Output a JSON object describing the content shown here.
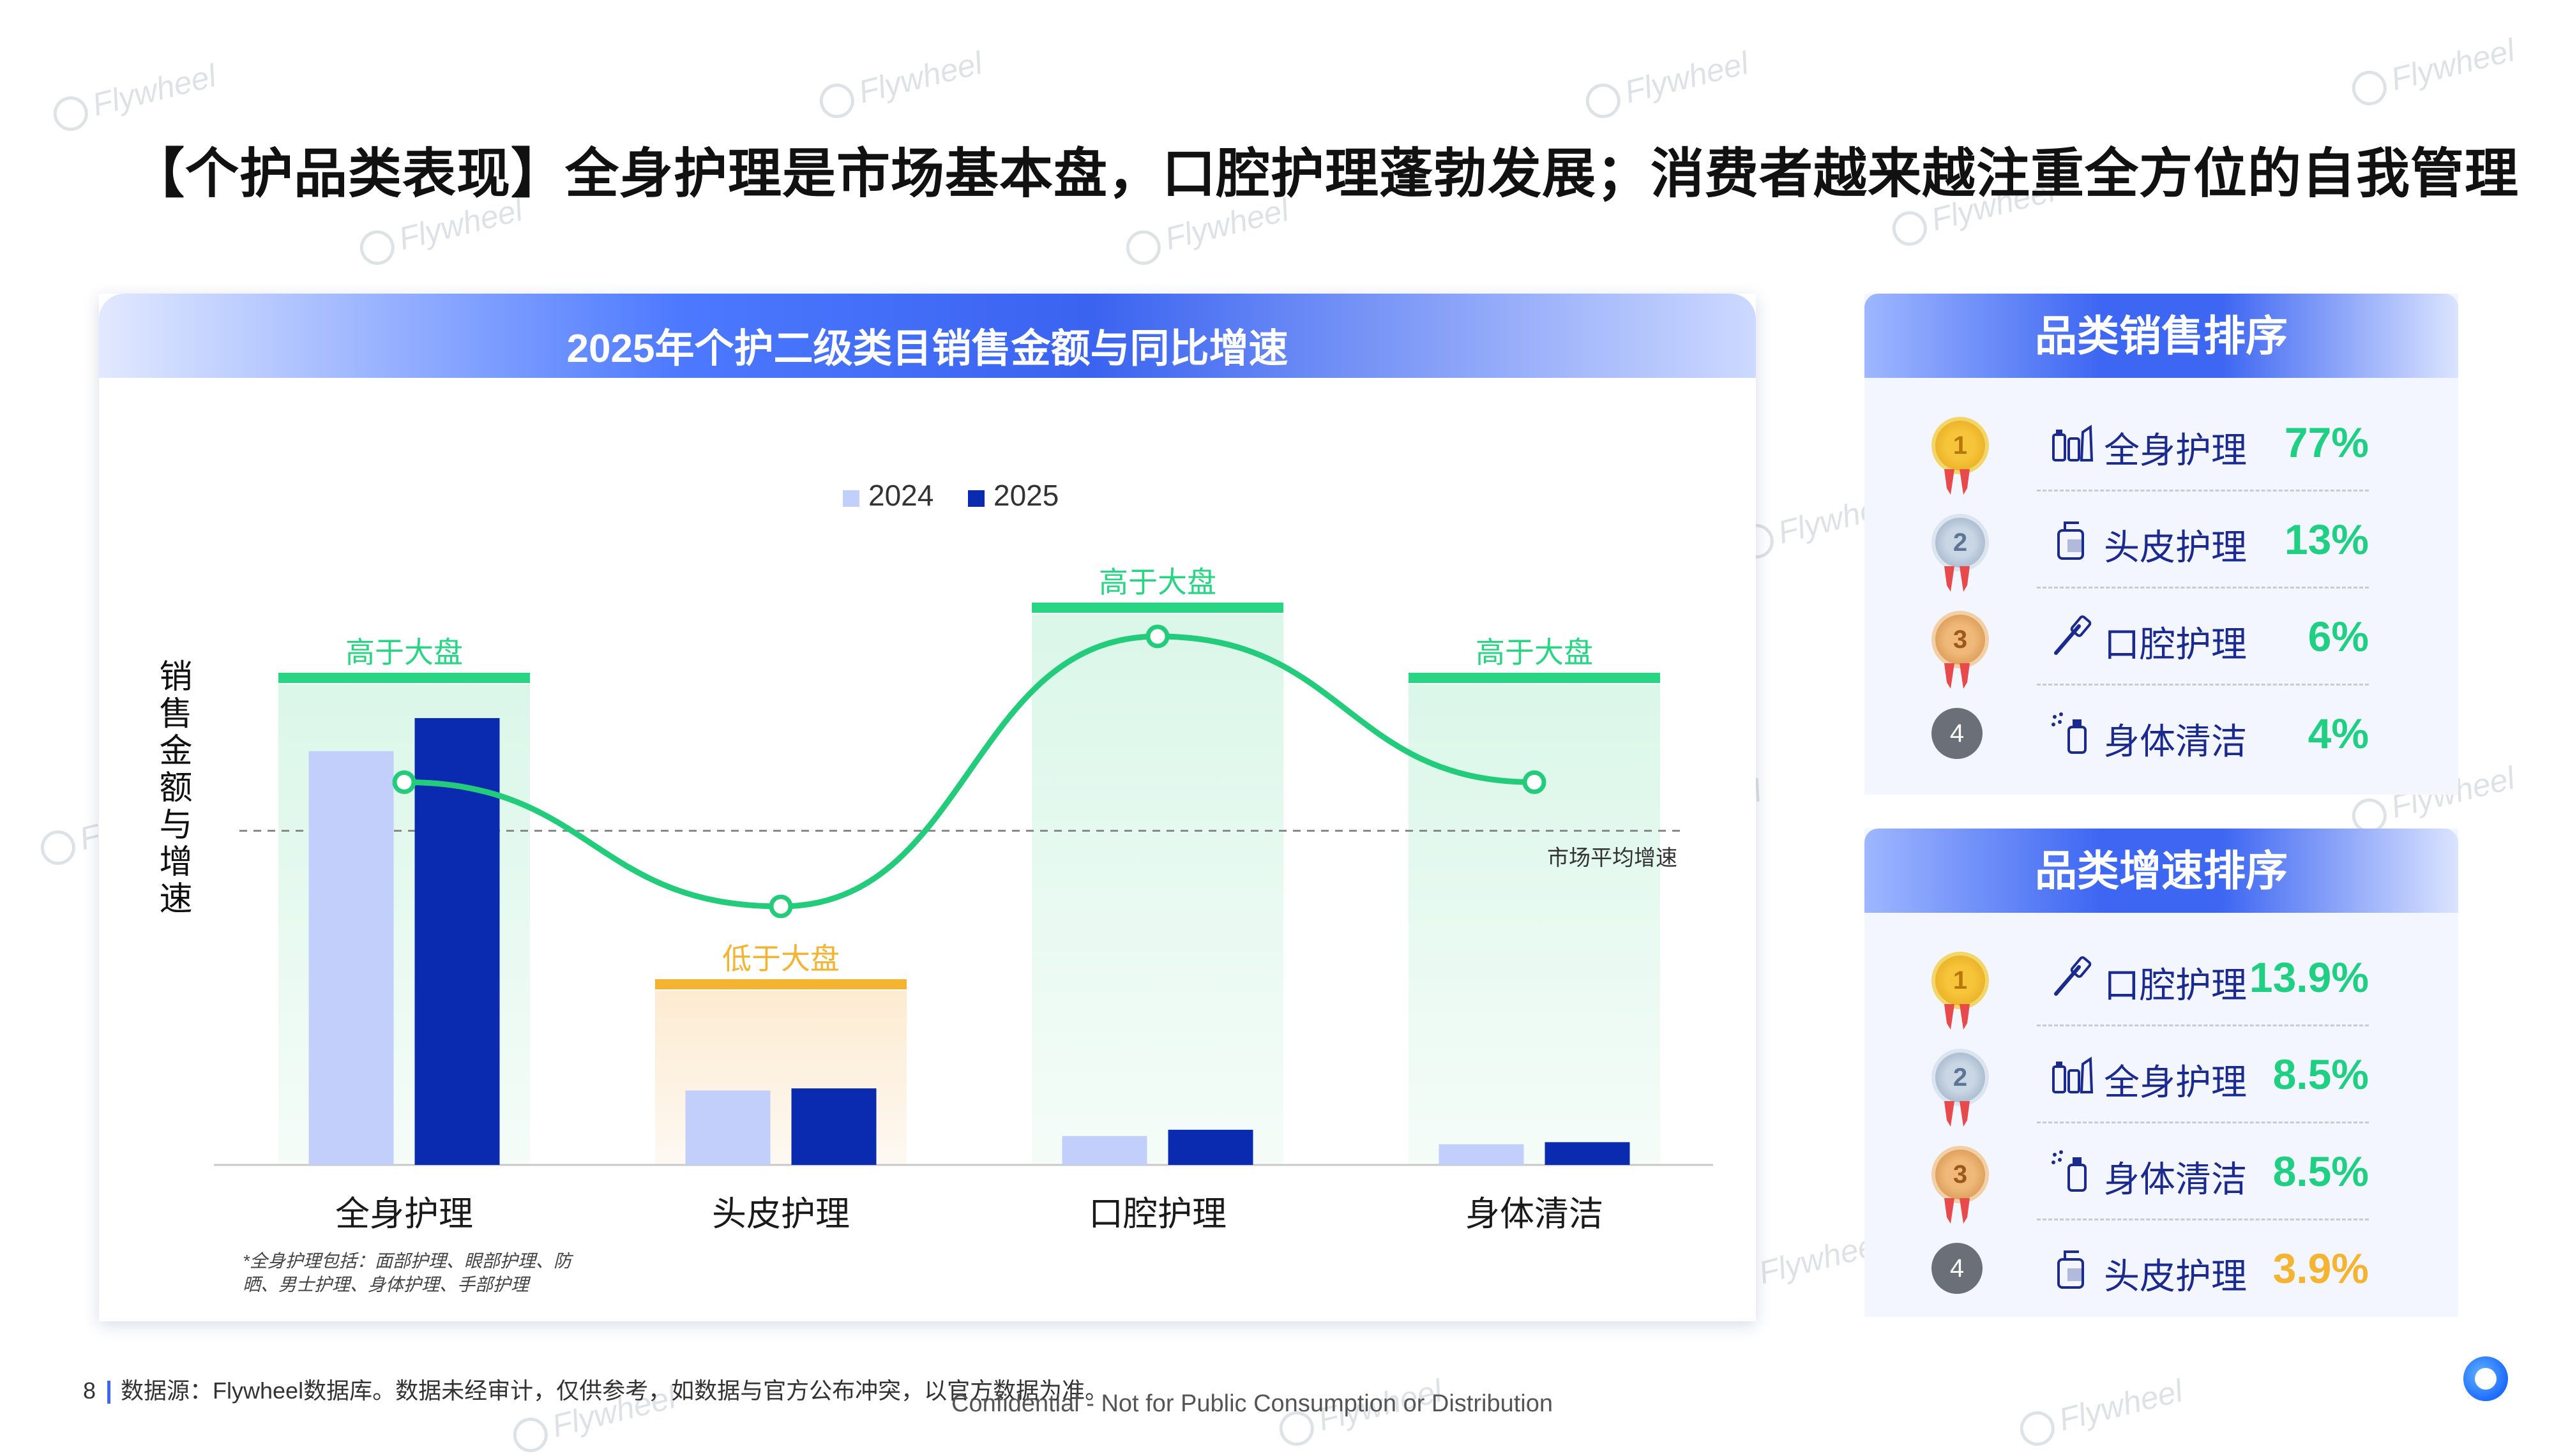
{
  "headline": "【个护品类表现】全身护理是市场基本盘，口腔护理蓬勃发展；消费者越来越注重全方位的自我管理",
  "watermark": "Flywheel",
  "chart_data": {
    "type": "bar",
    "title": "2025年个护二级类目销售金额与同比增速",
    "categories": [
      "全身护理",
      "头皮护理",
      "口腔护理",
      "身体清洁"
    ],
    "series": [
      {
        "name": "2024",
        "values": [
          100,
          18,
          7,
          5
        ],
        "color": "#c3cffb"
      },
      {
        "name": "2025",
        "values": [
          108,
          18.5,
          8.5,
          5.5
        ],
        "color": "#0a2bb0"
      }
    ],
    "growth_line": {
      "values": [
        8.5,
        3.9,
        13.9,
        8.5
      ],
      "color": "#22cc7a"
    },
    "market_average_label": "市场平均增速",
    "ylabel": "销售金额与增速",
    "legend_position": "top-center",
    "annotations": [
      {
        "category": "全身护理",
        "text": "高于大盘",
        "type": "above"
      },
      {
        "category": "头皮护理",
        "text": "低于大盘",
        "type": "below"
      },
      {
        "category": "口腔护理",
        "text": "高于大盘",
        "type": "above"
      },
      {
        "category": "身体清洁",
        "text": "高于大盘",
        "type": "above"
      }
    ],
    "footnote_line1": "*全身护理包括：面部护理、眼部护理、防",
    "footnote_line2": "晒、男士护理、身体护理、手部护理"
  },
  "sales_rank": {
    "title": "品类销售排序",
    "items": [
      {
        "rank": "1",
        "name": "全身护理",
        "value": "77%",
        "icon": "bottles-icon"
      },
      {
        "rank": "2",
        "name": "头皮护理",
        "value": "13%",
        "icon": "shampoo-icon"
      },
      {
        "rank": "3",
        "name": "口腔护理",
        "value": "6%",
        "icon": "toothbrush-icon"
      },
      {
        "rank": "4",
        "name": "身体清洁",
        "value": "4%",
        "icon": "spray-icon"
      }
    ]
  },
  "growth_rank": {
    "title": "品类增速排序",
    "items": [
      {
        "rank": "1",
        "name": "口腔护理",
        "value": "13.9%",
        "icon": "toothbrush-icon"
      },
      {
        "rank": "2",
        "name": "全身护理",
        "value": "8.5%",
        "icon": "bottles-icon"
      },
      {
        "rank": "3",
        "name": "身体清洁",
        "value": "8.5%",
        "icon": "spray-icon"
      },
      {
        "rank": "4",
        "name": "头皮护理",
        "value": "3.9%",
        "icon": "shampoo-icon"
      }
    ]
  },
  "footer": {
    "page": "8",
    "source": "数据源：Flywheel数据库。数据未经审计，仅供参考，如数据与官方公布冲突，以官方数据为准。",
    "confidential": "Confidential - Not for Public Consumption or Distribution"
  }
}
